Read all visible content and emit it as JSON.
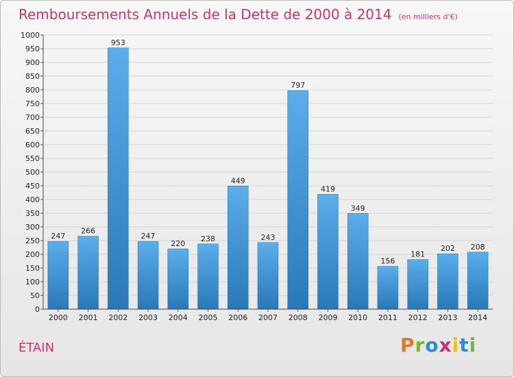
{
  "title": "Remboursements Annuels de la Dette de 2000 à 2014",
  "subtitle": "(en milliers d'€)",
  "town": "ÉTAIN",
  "logo": [
    "P",
    "r",
    "o",
    "x",
    "i",
    "t",
    "i"
  ],
  "colors": {
    "title": "#c8346c",
    "bar_top": "#5aaeea",
    "bar_bottom": "#2a78b8",
    "logo": [
      "#e07a1e",
      "#7ab52a",
      "#2a8ad8",
      "#c8346c",
      "#e8c020",
      "#2a8ad8",
      "#7ab52a"
    ]
  },
  "chart_data": {
    "type": "bar",
    "categories": [
      "2000",
      "2001",
      "2002",
      "2003",
      "2004",
      "2005",
      "2006",
      "2007",
      "2008",
      "2009",
      "2010",
      "2011",
      "2012",
      "2013",
      "2014"
    ],
    "values": [
      247,
      266,
      953,
      247,
      220,
      238,
      449,
      243,
      797,
      419,
      349,
      156,
      181,
      202,
      208
    ],
    "title": "Remboursements Annuels de la Dette de 2000 à 2014",
    "xlabel": "",
    "ylabel": "",
    "ylim": [
      0,
      1000
    ],
    "ytick_step": 50,
    "grid": true
  }
}
